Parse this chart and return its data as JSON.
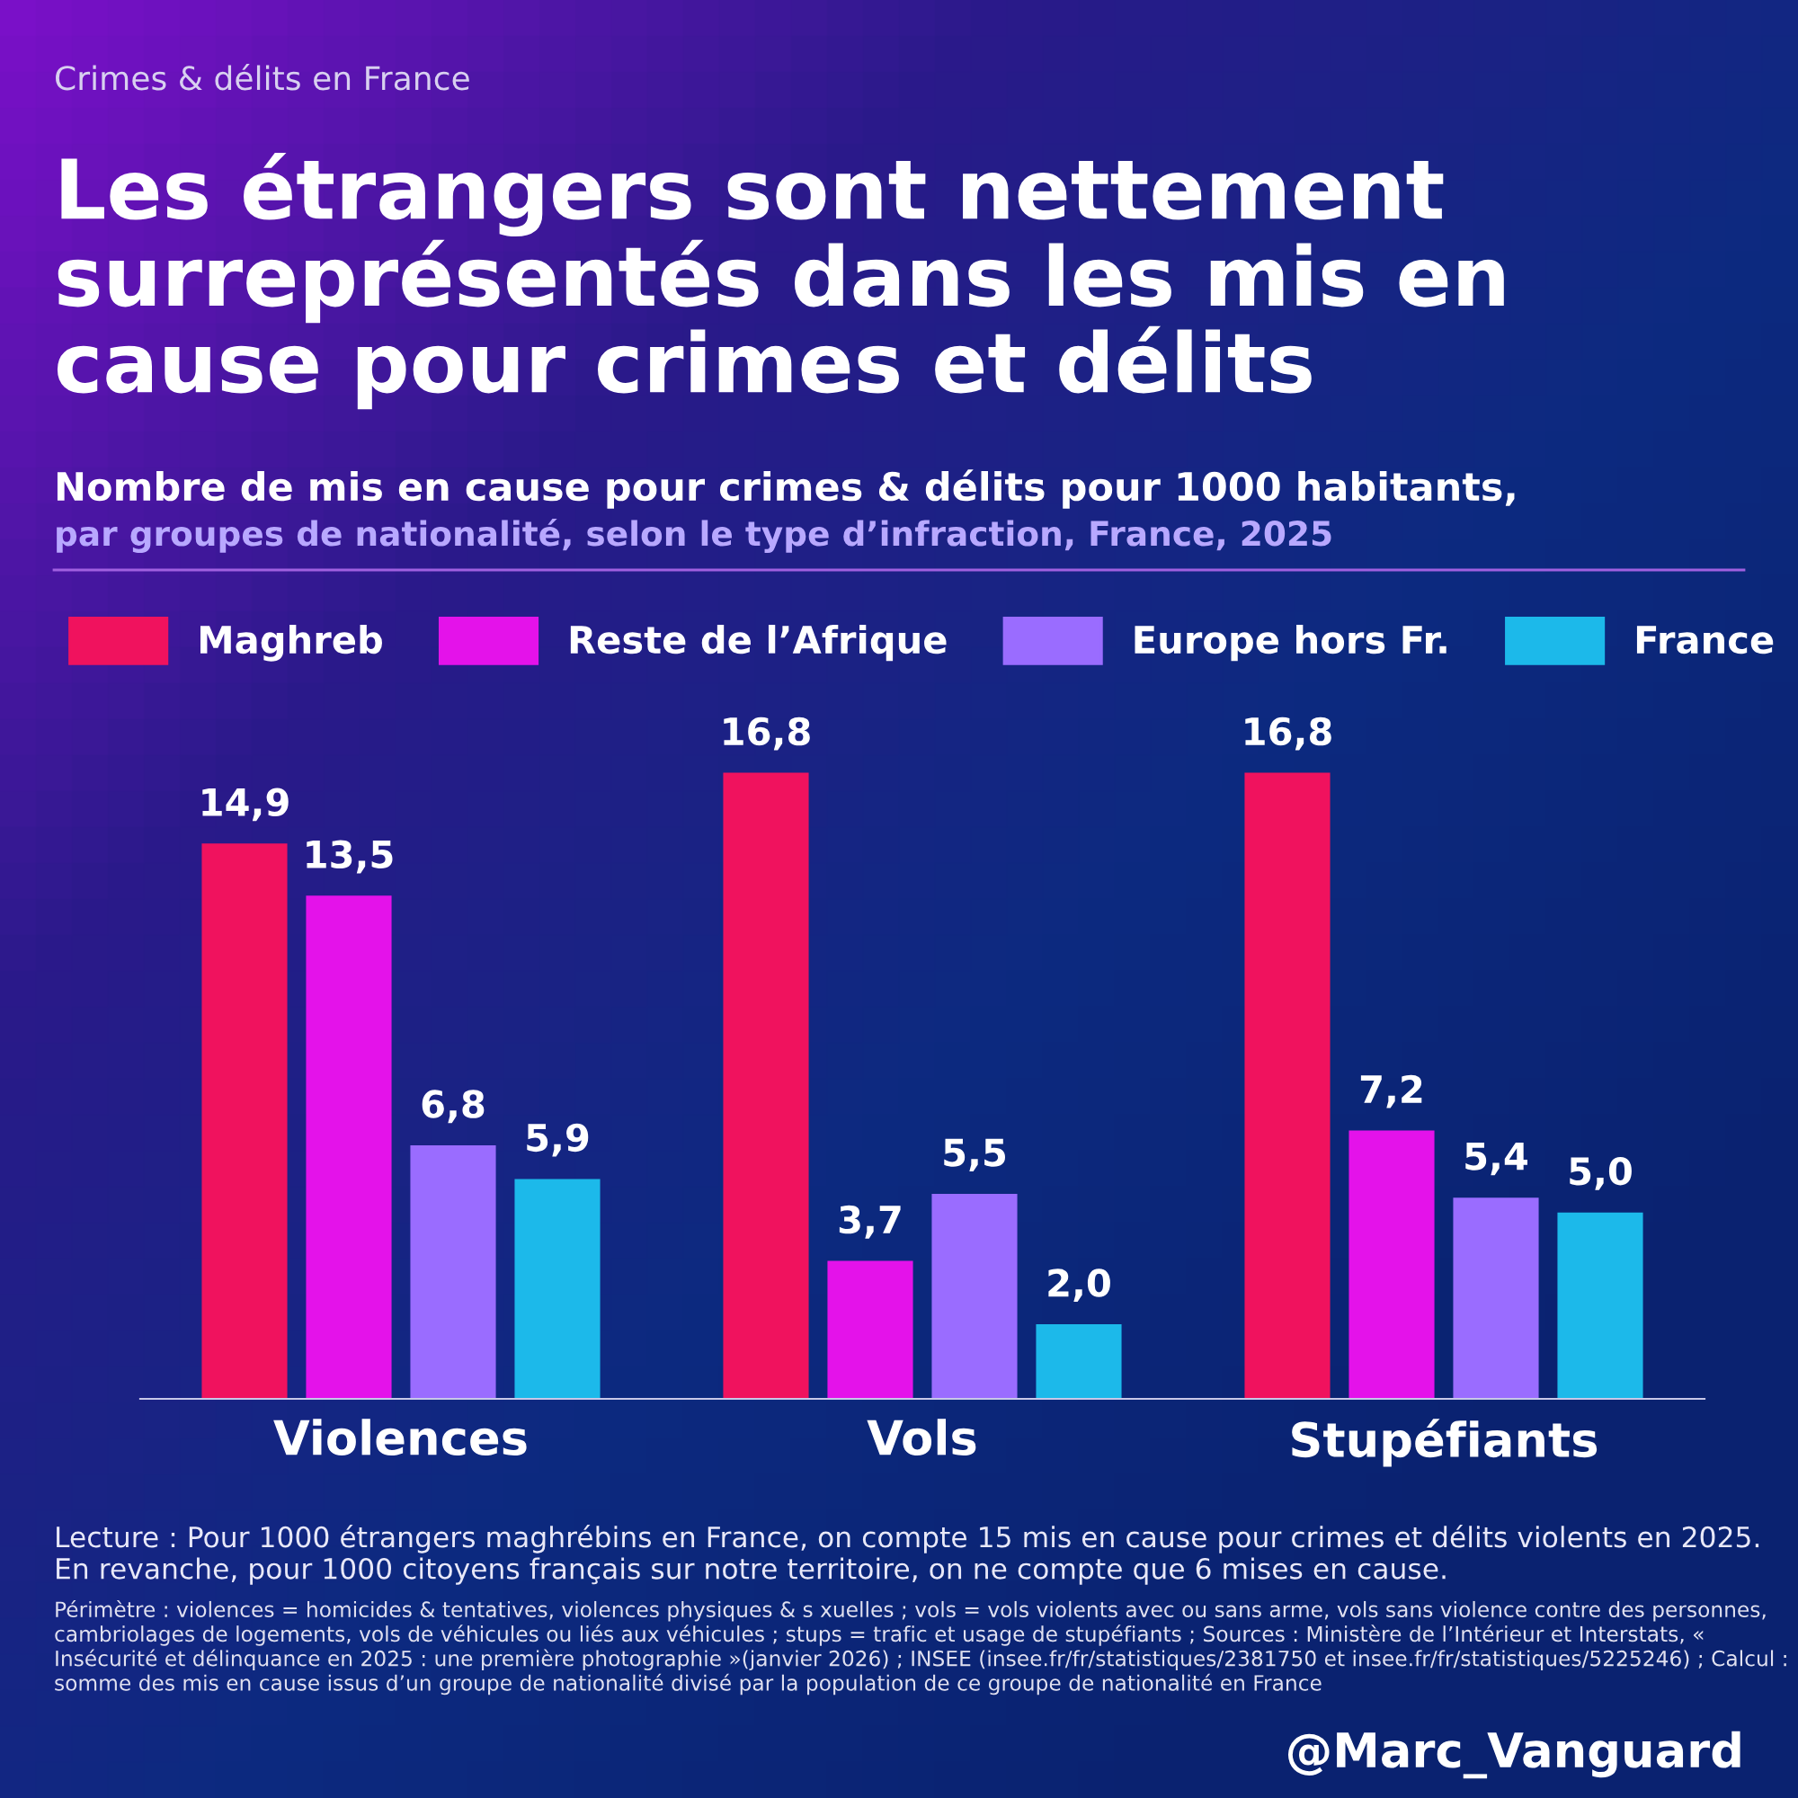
{
  "chart_data": {
    "type": "bar",
    "title": "Les étrangers sont nettement surreprésentés dans les mis en cause pour crimes et délits",
    "subtitle": "Nombre de mis en cause pour crimes & délits pour 1000 habitants,",
    "categories": [
      "Violences",
      "Vols",
      "Stupéfiants"
    ],
    "series": [
      {
        "name": "Maghreb",
        "color": "#f0125e",
        "values": [
          14.9,
          16.8,
          16.8
        ],
        "value_labels": [
          "14,9",
          "16,8",
          "16,8"
        ]
      },
      {
        "name": "Reste de l’Afrique",
        "color": "#e412ea",
        "values": [
          13.5,
          3.7,
          7.2
        ],
        "value_labels": [
          "13,5",
          "3,7",
          "7,2"
        ]
      },
      {
        "name": "Europe hors Fr.",
        "color": "#9a6cff",
        "values": [
          6.8,
          5.5,
          5.4
        ],
        "value_labels": [
          "6,8",
          "5,5",
          "5,4"
        ]
      },
      {
        "name": "France",
        "color": "#1cb9ea",
        "values": [
          5.9,
          2.0,
          5.0
        ],
        "value_labels": [
          "5,9",
          "2,0",
          "5,0"
        ]
      }
    ],
    "legend": "top",
    "grid": false,
    "annotations": [
      "Crimes & délits en France",
      "par groupes de nationalité, selon le type d’infraction, France, 2025",
      "Lecture : Pour 1000 étrangers maghrébins en France, on compte 15 mis en cause pour crimes et délits violents en 2025. En revanche, pour 1000 citoyens français sur notre territoire, on ne compte que 6 mises en cause.",
      "Périmètre : violences = homicides & tentatives, violences physiques & s xuelles ; vols = vols violents avec ou sans arme, vols sans violence contre des personnes, cambriolages de logements, vols de véhicules ou liés aux véhicules ; stups = trafic et usage de stupéfiants ; Sources : Ministère de l’Intérieur et Interstats, « Insécurité et délinquance en 2025 : une première photographie »(janvier 2026) ; INSEE (insee.fr/fr/statistiques/2381750 et insee.fr/fr/statistiques/5225246) ; Calcul : somme des mis en cause issus d’un groupe de nationalité divisé par la population de ce groupe de nationalité en France",
      "@Marc_Vanguard"
    ]
  }
}
